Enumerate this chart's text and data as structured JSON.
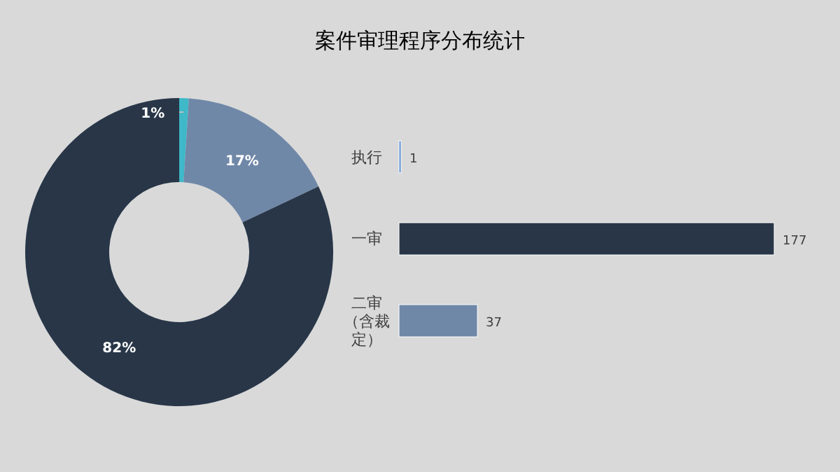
{
  "chart_data": [
    {
      "type": "other",
      "title": "案件审理程序分布统计"
    },
    {
      "type": "donut",
      "categories": [
        null,
        null,
        null
      ],
      "values": [
        1,
        17,
        82
      ],
      "colors": [
        "#3fb8c8",
        "#7088a8",
        "#283648"
      ],
      "value_labels": [
        "1%",
        "17%",
        "82%"
      ]
    },
    {
      "type": "bar",
      "orientation": "horizontal",
      "categories": [
        "执行",
        "一审",
        "二审（含裁定）"
      ],
      "values": [
        1,
        177,
        37
      ],
      "colors": [
        "#5b8fd0",
        "#283648",
        "#7088a8"
      ],
      "data_labels": true
    }
  ]
}
